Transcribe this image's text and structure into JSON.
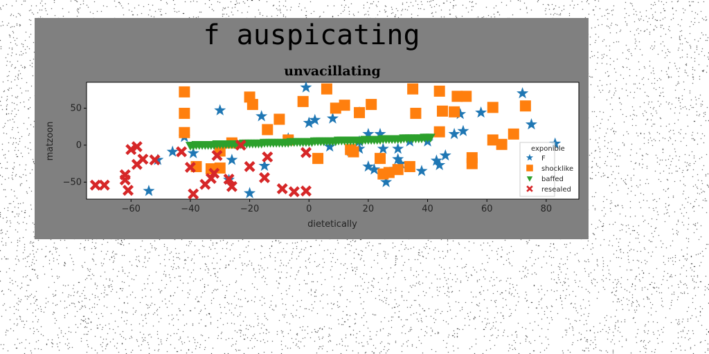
{
  "colors": {
    "figure_bg": "#808080",
    "axes_bg": "#ffffff",
    "F": "#1f77b4",
    "shocklike": "#ff7f0e",
    "baffed": "#2ca02c",
    "resealed": "#d62728"
  },
  "chart_data": {
    "type": "scatter",
    "suptitle": "f auspicating",
    "title": "unvacillating",
    "xlabel": "dietetically",
    "ylabel": "matzoon",
    "xlim": [
      -75,
      91
    ],
    "ylim": [
      -73,
      85
    ],
    "xticks": [
      -60,
      -40,
      -20,
      0,
      20,
      40,
      60,
      80
    ],
    "yticks": [
      -50,
      0,
      50
    ],
    "grid": false,
    "legend": {
      "title": "exponible",
      "placement": "lower right"
    },
    "series": [
      {
        "name": "F",
        "marker": "star",
        "points": [
          [
            -54,
            -62
          ],
          [
            -51,
            -20
          ],
          [
            -46,
            -9
          ],
          [
            -42,
            11
          ],
          [
            -39,
            -11
          ],
          [
            -30,
            47
          ],
          [
            -27,
            -47
          ],
          [
            -26,
            -20
          ],
          [
            -20,
            -65
          ],
          [
            -16,
            39
          ],
          [
            -15,
            -28
          ],
          [
            -7,
            9
          ],
          [
            -1,
            78
          ],
          [
            0,
            30
          ],
          [
            2,
            34
          ],
          [
            7,
            -2
          ],
          [
            8,
            36
          ],
          [
            14,
            -8
          ],
          [
            17,
            -5
          ],
          [
            17,
            44
          ],
          [
            17,
            5
          ],
          [
            20,
            -29
          ],
          [
            20,
            15
          ],
          [
            22,
            -33
          ],
          [
            24,
            15
          ],
          [
            25,
            -40
          ],
          [
            25,
            -5
          ],
          [
            26,
            -50
          ],
          [
            29,
            -32
          ],
          [
            30,
            -19
          ],
          [
            30,
            -5
          ],
          [
            31,
            -25
          ],
          [
            34,
            5
          ],
          [
            38,
            -35
          ],
          [
            40,
            5
          ],
          [
            43,
            -21
          ],
          [
            44,
            -27
          ],
          [
            46,
            -14
          ],
          [
            49,
            15
          ],
          [
            51,
            42
          ],
          [
            52,
            19
          ],
          [
            58,
            44
          ],
          [
            72,
            70
          ],
          [
            75,
            28
          ],
          [
            83,
            2
          ]
        ]
      },
      {
        "name": "shocklike",
        "marker": "square",
        "points": [
          [
            -42,
            72
          ],
          [
            -42,
            43
          ],
          [
            -42,
            17
          ],
          [
            -38,
            -29
          ],
          [
            -33,
            -32
          ],
          [
            -30,
            -8
          ],
          [
            -30,
            -31
          ],
          [
            -26,
            3
          ],
          [
            -20,
            65
          ],
          [
            -19,
            55
          ],
          [
            -14,
            21
          ],
          [
            -10,
            35
          ],
          [
            -7,
            7
          ],
          [
            -2,
            59
          ],
          [
            3,
            -18
          ],
          [
            6,
            76
          ],
          [
            9,
            50
          ],
          [
            12,
            54
          ],
          [
            14,
            -6
          ],
          [
            15,
            -9
          ],
          [
            17,
            44
          ],
          [
            21,
            55
          ],
          [
            24,
            -18
          ],
          [
            25,
            -39
          ],
          [
            27,
            -37
          ],
          [
            30,
            -33
          ],
          [
            34,
            -29
          ],
          [
            35,
            76
          ],
          [
            36,
            43
          ],
          [
            44,
            73
          ],
          [
            44,
            18
          ],
          [
            45,
            46
          ],
          [
            49,
            45
          ],
          [
            50,
            66
          ],
          [
            53,
            66
          ],
          [
            55,
            -17
          ],
          [
            55,
            -25
          ],
          [
            62,
            7
          ],
          [
            62,
            51
          ],
          [
            65,
            1
          ],
          [
            69,
            15
          ],
          [
            73,
            53
          ]
        ]
      },
      {
        "name": "baffed",
        "marker": "triangle_down",
        "points": [
          [
            -40,
            0
          ],
          [
            -39,
            0
          ],
          [
            -38,
            1
          ],
          [
            -37,
            1
          ],
          [
            -36,
            1
          ],
          [
            -35,
            1
          ],
          [
            -34,
            1
          ],
          [
            -33,
            1
          ],
          [
            -32,
            1
          ],
          [
            -31,
            2
          ],
          [
            -30,
            2
          ],
          [
            -29,
            2
          ],
          [
            -28,
            2
          ],
          [
            -27,
            2
          ],
          [
            -26,
            2
          ],
          [
            -25,
            2
          ],
          [
            -24,
            2
          ],
          [
            -23,
            2
          ],
          [
            -22,
            3
          ],
          [
            -21,
            3
          ],
          [
            -20,
            3
          ],
          [
            -19,
            3
          ],
          [
            -18,
            3
          ],
          [
            -17,
            3
          ],
          [
            -16,
            3
          ],
          [
            -15,
            4
          ],
          [
            -14,
            4
          ],
          [
            -13,
            4
          ],
          [
            -12,
            4
          ],
          [
            -11,
            4
          ],
          [
            -10,
            4
          ],
          [
            -9,
            4
          ],
          [
            -8,
            4
          ],
          [
            -7,
            4
          ],
          [
            -6,
            5
          ],
          [
            -5,
            5
          ],
          [
            -4,
            5
          ],
          [
            -3,
            5
          ],
          [
            -2,
            5
          ],
          [
            -1,
            5
          ],
          [
            0,
            5
          ],
          [
            1,
            5
          ],
          [
            2,
            6
          ],
          [
            3,
            6
          ],
          [
            4,
            6
          ],
          [
            5,
            6
          ],
          [
            6,
            6
          ],
          [
            7,
            6
          ],
          [
            8,
            6
          ],
          [
            9,
            6
          ],
          [
            10,
            7
          ],
          [
            11,
            7
          ],
          [
            12,
            7
          ],
          [
            13,
            7
          ],
          [
            14,
            7
          ],
          [
            15,
            7
          ],
          [
            16,
            7
          ],
          [
            17,
            7
          ],
          [
            18,
            7
          ],
          [
            19,
            8
          ],
          [
            20,
            8
          ],
          [
            21,
            8
          ],
          [
            22,
            8
          ],
          [
            23,
            8
          ],
          [
            24,
            8
          ],
          [
            25,
            9
          ],
          [
            26,
            9
          ],
          [
            27,
            9
          ],
          [
            28,
            9
          ],
          [
            29,
            9
          ],
          [
            30,
            9
          ],
          [
            31,
            9
          ],
          [
            32,
            10
          ],
          [
            33,
            10
          ],
          [
            34,
            10
          ],
          [
            35,
            10
          ],
          [
            36,
            10
          ],
          [
            37,
            10
          ],
          [
            38,
            10
          ],
          [
            39,
            11
          ],
          [
            40,
            11
          ],
          [
            41,
            11
          ]
        ]
      },
      {
        "name": "resealed",
        "marker": "x",
        "points": [
          [
            -72,
            -54
          ],
          [
            -69,
            -54
          ],
          [
            -62,
            -40
          ],
          [
            -62,
            -47
          ],
          [
            -61,
            -61
          ],
          [
            -60,
            -6
          ],
          [
            -58,
            -2
          ],
          [
            -58,
            -26
          ],
          [
            -56,
            -19
          ],
          [
            -52,
            -20
          ],
          [
            -43,
            -9
          ],
          [
            -40,
            -30
          ],
          [
            -39,
            -66
          ],
          [
            -35,
            -53
          ],
          [
            -33,
            -45
          ],
          [
            -32,
            -38
          ],
          [
            -31,
            -14
          ],
          [
            -27,
            -46
          ],
          [
            -26,
            -56
          ],
          [
            -23,
            0
          ],
          [
            -20,
            -29
          ],
          [
            -15,
            -44
          ],
          [
            -14,
            -16
          ],
          [
            -9,
            -59
          ],
          [
            -5,
            -63
          ],
          [
            -1,
            -62
          ],
          [
            -1,
            -10
          ]
        ]
      }
    ]
  }
}
